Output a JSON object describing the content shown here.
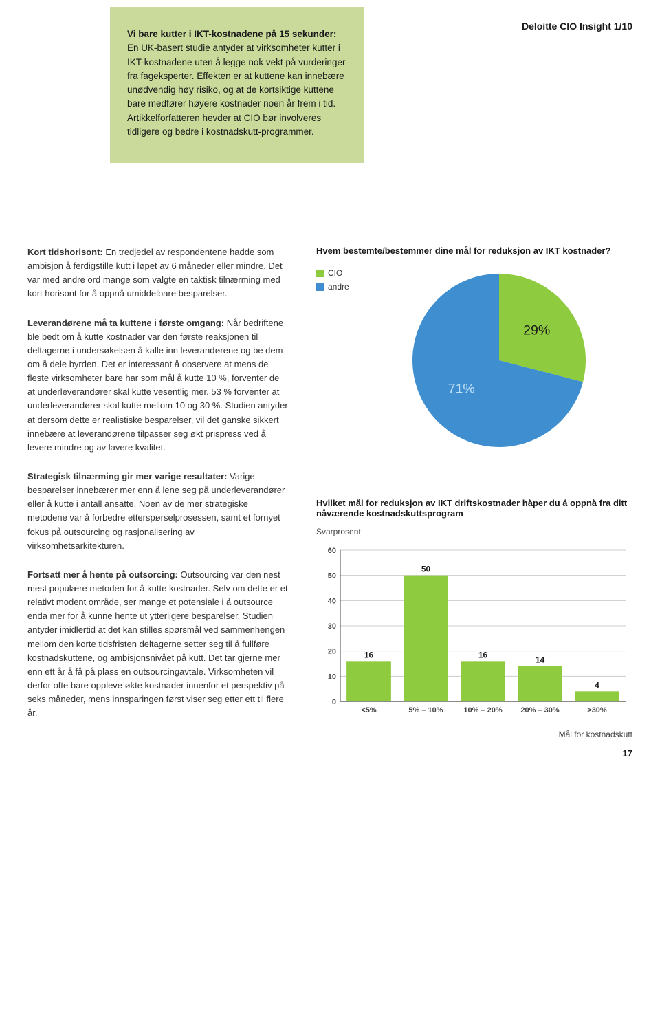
{
  "header": {
    "series_title": "Deloitte CIO Insight 1/10"
  },
  "callout": {
    "lead_bold": "Vi bare kutter i IKT-kostnadene på 15 sekunder:",
    "body": " En UK-basert studie antyder at virksomheter kutter i IKT-kostnadene uten å legge nok vekt på vurderinger fra fageksperter. Effekten er at kuttene kan innebære unødvendig høy risiko, og at de kortsiktige kuttene bare medfører høyere kostnader noen år frem i tid. Artikkelforfatteren hevder at CIO bør involveres tidligere og bedre i kostnadskutt-programmer."
  },
  "paragraphs": {
    "p1_bold": "Kort tidshorisont:",
    "p1_body": " En tredjedel av respondentene hadde som ambisjon å ferdigstille kutt i løpet av 6 måneder eller mindre. Det var med andre ord mange som valgte en taktisk tilnærming med kort horisont for å oppnå umiddelbare besparelser.",
    "p2_bold": "Leverandørene må ta kuttene i første omgang:",
    "p2_body": " Når bedriftene ble bedt om å kutte kostnader var den første reaksjonen til deltagerne i undersøkelsen å kalle inn leverandørene og be dem om å dele byrden. Det er interessant å observere at mens de fleste virksomheter bare har som mål å kutte 10 %, forventer de at underleverandører skal kutte vesentlig mer. 53 % forventer at underleverandører skal kutte mellom 10 og 30 %. Studien antyder at dersom dette er realistiske besparelser, vil det ganske sikkert innebære at leverandørene tilpasser seg økt prispress ved å levere mindre og av lavere kvalitet.",
    "p3_bold": "Strategisk tilnærming gir mer varige resultater:",
    "p3_body": " Varige besparelser innebærer mer enn å lene seg på underleverandører eller å kutte i antall ansatte. Noen av de mer strategiske metodene var å forbedre etterspørselprosessen, samt et fornyet fokus på outsourcing og rasjonalisering av virksomhetsarkitekturen.",
    "p4_bold": "Fortsatt mer å hente på outsorcing:",
    "p4_body": " Outsourcing var den nest mest populære metoden for å kutte kostnader. Selv om dette er et relativt modent område, ser mange et potensiale i å outsource enda mer for å kunne hente ut ytterligere besparelser. Studien antyder imidlertid at det kan stilles spørsmål ved sammenhengen mellom den korte tidsfristen deltagerne setter seg til å fullføre kostnadskuttene, og ambisjonsnivået på kutt. Det tar gjerne mer enn ett år å få på plass en outsourcingavtale. Virksomheten vil derfor ofte bare oppleve økte kostnader innenfor et perspektiv på seks måneder, mens innsparingen først viser seg etter ett til flere år."
  },
  "pie_chart": {
    "type": "pie",
    "title": "Hvem bestemte/bestemmer dine mål for reduksjon av IKT kostnader?",
    "legend": [
      {
        "label": "CIO",
        "color": "#8ecb3f"
      },
      {
        "label": "andre",
        "color": "#3e8ed0"
      }
    ],
    "slices": [
      {
        "label": "71%",
        "value": 71,
        "color": "#3e8ed0",
        "label_color": "#bfe1f5"
      },
      {
        "label": "29%",
        "value": 29,
        "color": "#8ecb3f",
        "label_color": "#1a1a1a"
      }
    ],
    "background_color": "#ffffff",
    "label_fontsize": 14
  },
  "bar_chart": {
    "type": "bar",
    "title": "Hvilket mål for reduksjon av IKT driftskostnader håper du å oppnå fra ditt nåværende kostnadskuttsprogram",
    "subtitle": "Svarprosent",
    "x_axis_label": "Mål for kostnadskutt",
    "categories": [
      "<5%",
      "5% – 10%",
      "10% – 20%",
      "20% – 30%",
      ">30%"
    ],
    "values": [
      16,
      50,
      16,
      14,
      4
    ],
    "bar_color": "#8ecb3f",
    "value_label_color": "#1a1a1a",
    "value_label_fontsize": 12,
    "axis_color": "#444444",
    "grid_color": "#cccccc",
    "tick_color": "#444444",
    "tick_fontsize": 11,
    "ylim": [
      0,
      60
    ],
    "ytick_step": 10,
    "bar_width": 0.78,
    "background_color": "#ffffff"
  },
  "page_number": "17"
}
